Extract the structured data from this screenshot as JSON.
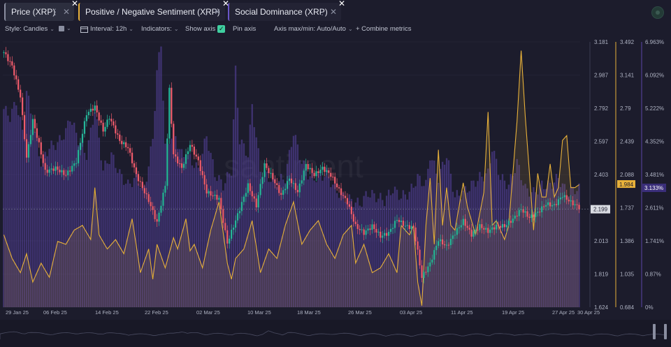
{
  "tabs": [
    {
      "label": "Price (XRP)",
      "accent": "#8a8ea0"
    },
    {
      "label": "Positive / Negative Sentiment (XRP)",
      "accent": "#e8b13a"
    },
    {
      "label": "Social Dominance (XRP)",
      "accent": "#6a56c8"
    }
  ],
  "tab_menu_glyph": "⋮",
  "tab_hide_glyph": "✕",
  "tab_remove_glyph": "✕",
  "toolbar": {
    "style_label": "Style: Candles",
    "interval_label": "Interval: 12h",
    "indicators_label": "Indicators:",
    "show_axis_label": "Show axis",
    "pin_axis_label": "Pin axis",
    "axis_minmax_label": "Axis max/min: Auto/Auto",
    "combine_label": "+ Combine metrics",
    "check_glyph": "✓"
  },
  "colors": {
    "up": "#26b79a",
    "down": "#ef5b6b",
    "sentiment": "#e8b13a",
    "dominance": "#5b45a8",
    "background": "#1c1c2c"
  },
  "chart_data": {
    "type": "line",
    "x_tick_labels": [
      "29 Jan 25",
      "06 Feb 25",
      "14 Feb 25",
      "22 Feb 25",
      "02 Mar 25",
      "10 Mar 25",
      "18 Mar 25",
      "26 Mar 25",
      "03 Apr 25",
      "11 Apr 25",
      "19 Apr 25",
      "27 Apr 25",
      "30 Apr 25"
    ],
    "axes": {
      "price": {
        "ticks": [
          "3.181",
          "2.987",
          "2.792",
          "2.597",
          "2.403",
          "2.208",
          "2.013",
          "1.819",
          "1.624"
        ],
        "range": [
          1.624,
          3.181
        ],
        "current_label": "2.199"
      },
      "sentiment": {
        "ticks": [
          "3.492",
          "3.141",
          "2.79",
          "2.439",
          "2.088",
          "1.737",
          "1.386",
          "1.035",
          "0.684"
        ],
        "range": [
          0.684,
          3.492
        ],
        "current_label": "1.984"
      },
      "dominance": {
        "ticks": [
          "6.963%",
          "6.092%",
          "5.222%",
          "4.352%",
          "3.481%",
          "2.611%",
          "1.741%",
          "0.87%",
          "0%"
        ],
        "range": [
          0,
          6.963
        ],
        "current_label": "3.133%"
      }
    },
    "series": [
      {
        "name": "Price (XRP)",
        "kind": "candles",
        "close_keyframes": [
          [
            0,
            3.12
          ],
          [
            4,
            3.04
          ],
          [
            8,
            2.86
          ],
          [
            11,
            2.5
          ],
          [
            14,
            2.72
          ],
          [
            17,
            2.58
          ],
          [
            20,
            2.42
          ],
          [
            25,
            2.44
          ],
          [
            30,
            2.4
          ],
          [
            35,
            2.48
          ],
          [
            40,
            2.76
          ],
          [
            44,
            2.8
          ],
          [
            48,
            2.66
          ],
          [
            51,
            2.74
          ],
          [
            56,
            2.6
          ],
          [
            60,
            2.56
          ],
          [
            64,
            2.4
          ],
          [
            70,
            2.25
          ],
          [
            74,
            2.12
          ],
          [
            78,
            2.34
          ],
          [
            80,
            2.9
          ],
          [
            82,
            2.52
          ],
          [
            86,
            2.44
          ],
          [
            90,
            2.58
          ],
          [
            94,
            2.48
          ],
          [
            98,
            2.3
          ],
          [
            104,
            2.26
          ],
          [
            108,
            2.0
          ],
          [
            114,
            2.2
          ],
          [
            118,
            2.34
          ],
          [
            122,
            2.22
          ],
          [
            126,
            2.46
          ],
          [
            130,
            2.38
          ],
          [
            134,
            2.28
          ],
          [
            138,
            2.38
          ],
          [
            142,
            2.3
          ],
          [
            146,
            2.46
          ],
          [
            150,
            2.4
          ],
          [
            154,
            2.44
          ],
          [
            158,
            2.4
          ],
          [
            162,
            2.31
          ],
          [
            166,
            2.24
          ],
          [
            170,
            2.1
          ],
          [
            174,
            2.06
          ],
          [
            178,
            2.1
          ],
          [
            182,
            2.04
          ],
          [
            186,
            2.06
          ],
          [
            190,
            2.14
          ],
          [
            194,
            2.1
          ],
          [
            198,
            2.09
          ],
          [
            200,
            1.95
          ],
          [
            202,
            1.8
          ],
          [
            206,
            1.88
          ],
          [
            210,
            2.02
          ],
          [
            214,
            1.98
          ],
          [
            218,
            2.06
          ],
          [
            222,
            2.13
          ],
          [
            226,
            2.05
          ],
          [
            230,
            2.1
          ],
          [
            234,
            2.07
          ],
          [
            238,
            2.1
          ],
          [
            242,
            2.1
          ],
          [
            246,
            2.14
          ],
          [
            250,
            2.2
          ],
          [
            254,
            2.15
          ],
          [
            258,
            2.18
          ],
          [
            262,
            2.23
          ],
          [
            266,
            2.22
          ],
          [
            270,
            2.28
          ],
          [
            274,
            2.24
          ],
          [
            278,
            2.21
          ]
        ]
      },
      {
        "name": "Positive / Negative Sentiment (XRP)",
        "kind": "line",
        "keyframes": [
          [
            0,
            1.45
          ],
          [
            4,
            1.2
          ],
          [
            8,
            1.05
          ],
          [
            11,
            1.25
          ],
          [
            14,
            0.95
          ],
          [
            18,
            1.15
          ],
          [
            22,
            1.0
          ],
          [
            26,
            1.38
          ],
          [
            30,
            1.35
          ],
          [
            34,
            1.5
          ],
          [
            38,
            1.55
          ],
          [
            42,
            1.4
          ],
          [
            44,
            1.95
          ],
          [
            46,
            1.45
          ],
          [
            50,
            1.3
          ],
          [
            54,
            1.4
          ],
          [
            58,
            1.25
          ],
          [
            62,
            1.62
          ],
          [
            66,
            1.05
          ],
          [
            70,
            1.3
          ],
          [
            72,
            0.98
          ],
          [
            74,
            1.35
          ],
          [
            78,
            1.1
          ],
          [
            82,
            1.42
          ],
          [
            84,
            1.3
          ],
          [
            88,
            1.62
          ],
          [
            90,
            1.28
          ],
          [
            92,
            1.35
          ],
          [
            96,
            1.1
          ],
          [
            100,
            1.5
          ],
          [
            104,
            1.8
          ],
          [
            108,
            1.15
          ],
          [
            110,
            0.98
          ],
          [
            112,
            1.2
          ],
          [
            116,
            1.3
          ],
          [
            120,
            1.6
          ],
          [
            124,
            1.05
          ],
          [
            128,
            1.3
          ],
          [
            132,
            1.2
          ],
          [
            136,
            1.55
          ],
          [
            140,
            1.8
          ],
          [
            144,
            1.35
          ],
          [
            148,
            1.5
          ],
          [
            152,
            1.6
          ],
          [
            156,
            1.35
          ],
          [
            160,
            1.2
          ],
          [
            164,
            1.45
          ],
          [
            168,
            1.55
          ],
          [
            170,
            1.15
          ],
          [
            174,
            1.35
          ],
          [
            178,
            1.05
          ],
          [
            182,
            1.1
          ],
          [
            186,
            1.25
          ],
          [
            190,
            1.05
          ],
          [
            192,
            1.55
          ],
          [
            196,
            1.45
          ],
          [
            198,
            1.55
          ],
          [
            200,
            0.95
          ],
          [
            202,
            0.7
          ],
          [
            204,
            1.55
          ],
          [
            206,
            2.05
          ],
          [
            208,
            1.35
          ],
          [
            210,
            2.35
          ],
          [
            212,
            1.55
          ],
          [
            214,
            1.95
          ],
          [
            216,
            1.55
          ],
          [
            218,
            1.5
          ],
          [
            222,
            2.0
          ],
          [
            224,
            1.75
          ],
          [
            228,
            1.45
          ],
          [
            232,
            1.9
          ],
          [
            234,
            2.75
          ],
          [
            236,
            1.55
          ],
          [
            238,
            1.6
          ],
          [
            242,
            1.4
          ],
          [
            244,
            1.55
          ],
          [
            248,
            2.65
          ],
          [
            250,
            3.4
          ],
          [
            252,
            2.7
          ],
          [
            256,
            1.5
          ],
          [
            258,
            2.1
          ],
          [
            260,
            1.85
          ],
          [
            262,
            1.85
          ],
          [
            264,
            2.2
          ],
          [
            266,
            1.85
          ],
          [
            268,
            1.95
          ],
          [
            270,
            2.45
          ],
          [
            272,
            2.5
          ],
          [
            274,
            1.95
          ],
          [
            276,
            1.95
          ],
          [
            278,
            1.98
          ]
        ]
      },
      {
        "name": "Social Dominance (XRP)",
        "kind": "bar",
        "keyframes": [
          [
            0,
            5.2
          ],
          [
            3,
            5.0
          ],
          [
            6,
            5.4
          ],
          [
            9,
            4.6
          ],
          [
            11,
            5.7
          ],
          [
            14,
            4.8
          ],
          [
            18,
            3.8
          ],
          [
            22,
            4.2
          ],
          [
            26,
            4.3
          ],
          [
            30,
            4.6
          ],
          [
            32,
            5.0
          ],
          [
            36,
            4.4
          ],
          [
            40,
            4.0
          ],
          [
            44,
            5.2
          ],
          [
            48,
            3.6
          ],
          [
            52,
            4.0
          ],
          [
            56,
            3.5
          ],
          [
            60,
            3.2
          ],
          [
            64,
            3.4
          ],
          [
            68,
            3.1
          ],
          [
            72,
            4.4
          ],
          [
            74,
            6.2
          ],
          [
            76,
            6.9
          ],
          [
            78,
            4.2
          ],
          [
            82,
            4.6
          ],
          [
            86,
            4.0
          ],
          [
            90,
            3.9
          ],
          [
            94,
            3.6
          ],
          [
            98,
            4.5
          ],
          [
            102,
            3.5
          ],
          [
            106,
            3.2
          ],
          [
            110,
            3.6
          ],
          [
            112,
            6.2
          ],
          [
            114,
            4.4
          ],
          [
            118,
            4.0
          ],
          [
            120,
            5.3
          ],
          [
            124,
            3.6
          ],
          [
            128,
            3.4
          ],
          [
            132,
            3.3
          ],
          [
            136,
            3.4
          ],
          [
            140,
            4.6
          ],
          [
            144,
            3.8
          ],
          [
            148,
            3.4
          ],
          [
            152,
            3.4
          ],
          [
            156,
            3.5
          ],
          [
            160,
            3.1
          ],
          [
            164,
            2.9
          ],
          [
            168,
            2.8
          ],
          [
            172,
            2.7
          ],
          [
            176,
            3.0
          ],
          [
            180,
            2.9
          ],
          [
            184,
            2.8
          ],
          [
            188,
            3.1
          ],
          [
            192,
            2.9
          ],
          [
            196,
            3.0
          ],
          [
            200,
            3.4
          ],
          [
            204,
            3.2
          ],
          [
            206,
            4.0
          ],
          [
            210,
            3.4
          ],
          [
            214,
            4.0
          ],
          [
            218,
            2.9
          ],
          [
            222,
            3.0
          ],
          [
            226,
            3.2
          ],
          [
            230,
            3.4
          ],
          [
            234,
            3.5
          ],
          [
            236,
            4.2
          ],
          [
            240,
            3.4
          ],
          [
            244,
            3.2
          ],
          [
            248,
            3.8
          ],
          [
            252,
            3.1
          ],
          [
            256,
            3.0
          ],
          [
            260,
            3.2
          ],
          [
            264,
            3.2
          ],
          [
            268,
            3.4
          ],
          [
            272,
            3.0
          ],
          [
            276,
            3.1
          ],
          [
            278,
            3.1
          ]
        ]
      }
    ],
    "grid": true,
    "watermark": true
  }
}
